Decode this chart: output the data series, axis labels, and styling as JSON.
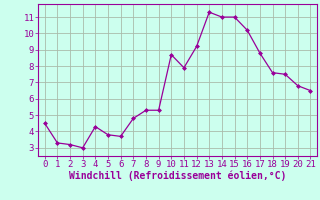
{
  "x": [
    0,
    1,
    2,
    3,
    4,
    5,
    6,
    7,
    8,
    9,
    10,
    11,
    12,
    13,
    14,
    15,
    16,
    17,
    18,
    19,
    20,
    21
  ],
  "y": [
    4.5,
    3.3,
    3.2,
    3.0,
    4.3,
    3.8,
    3.7,
    4.8,
    5.3,
    5.3,
    8.7,
    7.9,
    9.2,
    11.3,
    11.0,
    11.0,
    10.2,
    8.8,
    7.6,
    7.5,
    6.8,
    6.5
  ],
  "line_color": "#990099",
  "marker": "D",
  "marker_size": 2,
  "bg_color": "#ccffee",
  "grid_color": "#aabbaa",
  "axis_color": "#990099",
  "tick_color": "#990099",
  "xlabel": "Windchill (Refroidissement éolien,°C)",
  "xlim": [
    -0.5,
    21.5
  ],
  "ylim": [
    2.5,
    11.8
  ],
  "yticks": [
    3,
    4,
    5,
    6,
    7,
    8,
    9,
    10,
    11
  ],
  "xticks": [
    0,
    1,
    2,
    3,
    4,
    5,
    6,
    7,
    8,
    9,
    10,
    11,
    12,
    13,
    14,
    15,
    16,
    17,
    18,
    19,
    20,
    21
  ],
  "font_size": 6.5,
  "label_font_size": 7.0
}
